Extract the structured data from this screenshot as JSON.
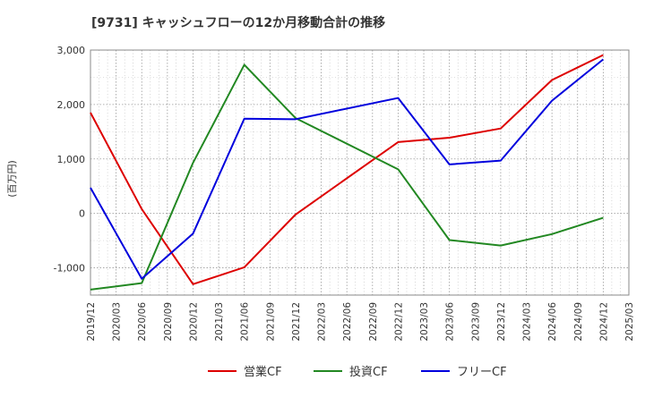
{
  "chart_data": {
    "type": "line",
    "title": "[9731]  キャッシュフローの12か月移動合計の推移",
    "ylabel": "(百万円)",
    "xlabel": "",
    "ylim": [
      -1500,
      3000
    ],
    "yticks": [
      -1000,
      0,
      1000,
      2000,
      3000
    ],
    "ytick_labels": [
      "-1,000",
      "0",
      "1,000",
      "2,000",
      "3,000"
    ],
    "x_ticks": [
      "2019/12",
      "2020/03",
      "2020/06",
      "2020/09",
      "2020/12",
      "2021/03",
      "2021/06",
      "2021/09",
      "2021/12",
      "2022/03",
      "2022/06",
      "2022/09",
      "2022/12",
      "2023/03",
      "2023/06",
      "2023/09",
      "2023/12",
      "2024/03",
      "2024/06",
      "2024/09",
      "2024/12",
      "2025/03"
    ],
    "grid": true,
    "legend_position": "bottom-center",
    "series": [
      {
        "name": "営業CF",
        "color": "#dd0000",
        "x": [
          "2019/12",
          "2020/06",
          "2020/12",
          "2021/06",
          "2021/12",
          "2022/12",
          "2023/06",
          "2023/12",
          "2024/06",
          "2024/12"
        ],
        "values": [
          1850,
          80,
          -1300,
          -990,
          -20,
          1310,
          1390,
          1560,
          2450,
          2910
        ]
      },
      {
        "name": "投資CF",
        "color": "#228822",
        "x": [
          "2019/12",
          "2020/06",
          "2020/12",
          "2021/06",
          "2021/12",
          "2022/12",
          "2023/06",
          "2023/12",
          "2024/06",
          "2024/12"
        ],
        "values": [
          -1400,
          -1280,
          930,
          2730,
          1750,
          810,
          -490,
          -590,
          -380,
          -80
        ]
      },
      {
        "name": "フリーCF",
        "color": "#0000dd",
        "x": [
          "2019/12",
          "2020/06",
          "2020/12",
          "2021/06",
          "2021/12",
          "2022/12",
          "2023/06",
          "2023/12",
          "2024/06",
          "2024/12"
        ],
        "values": [
          470,
          -1200,
          -370,
          1740,
          1730,
          2120,
          900,
          970,
          2070,
          2830
        ]
      }
    ]
  }
}
